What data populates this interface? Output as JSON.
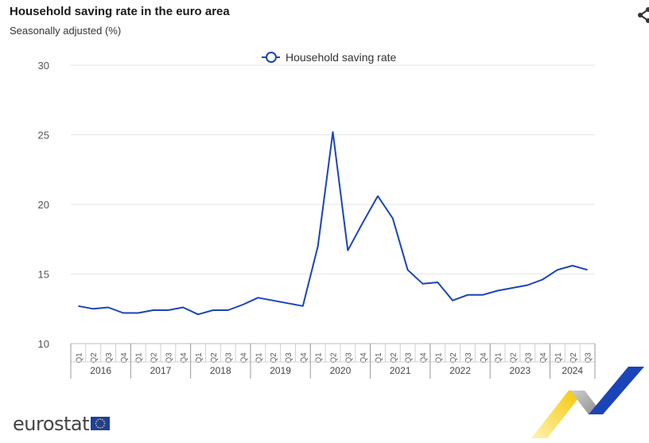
{
  "header": {
    "title": "Household saving rate in the euro area",
    "subtitle": "Seasonally adjusted (%)",
    "share_icon": "share-icon"
  },
  "logo": {
    "text": "eurostat",
    "flag_icon": "eu-flag-icon"
  },
  "colors": {
    "line": "#1a44b8",
    "grid": "#e6e6e6",
    "axis_text": "#555555",
    "accent_yellow": "#f5c400",
    "accent_blue": "#1a44b8"
  },
  "chart_data": {
    "type": "line",
    "title": "Household saving rate in the euro area",
    "subtitle": "Seasonally adjusted (%)",
    "xlabel": "",
    "ylabel": "",
    "ylim": [
      10,
      30
    ],
    "yticks": [
      10,
      15,
      20,
      25,
      30
    ],
    "grid": true,
    "legend_position": "top-center",
    "years": [
      "2016",
      "2017",
      "2018",
      "2019",
      "2020",
      "2021",
      "2022",
      "2023",
      "2024"
    ],
    "quarters": [
      "Q1",
      "Q2",
      "Q3",
      "Q4",
      "Q1",
      "Q2",
      "Q3",
      "Q4",
      "Q1",
      "Q2",
      "Q3",
      "Q4",
      "Q1",
      "Q2",
      "Q3",
      "Q4",
      "Q1",
      "Q2",
      "Q3",
      "Q4",
      "Q1",
      "Q2",
      "Q3",
      "Q4",
      "Q1",
      "Q2",
      "Q3",
      "Q4",
      "Q1",
      "Q2",
      "Q3",
      "Q4",
      "Q1",
      "Q2",
      "Q3"
    ],
    "series": [
      {
        "name": "Household saving rate",
        "values": [
          12.7,
          12.5,
          12.6,
          12.2,
          12.2,
          12.4,
          12.4,
          12.6,
          12.1,
          12.4,
          12.4,
          12.8,
          13.3,
          13.1,
          12.9,
          12.7,
          17.0,
          25.2,
          16.7,
          18.7,
          20.6,
          19.0,
          15.3,
          14.3,
          14.4,
          13.1,
          13.5,
          13.5,
          13.8,
          14.0,
          14.2,
          14.6,
          15.3,
          15.6,
          15.3
        ]
      }
    ]
  }
}
